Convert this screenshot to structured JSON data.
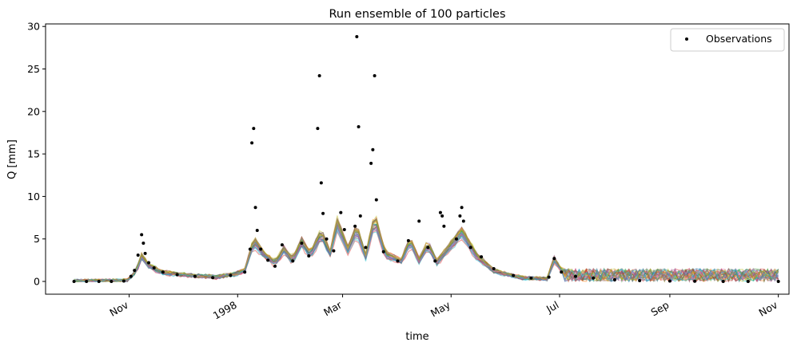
{
  "chart_data": {
    "type": "line",
    "title": "Run ensemble of 100 particles",
    "xlabel": "time",
    "ylabel": "Q [mm]",
    "x_axis_kind": "date",
    "xlim": [
      "1997-09-15",
      "1998-11-07"
    ],
    "ylim": [
      -1.5,
      30.3
    ],
    "yticks": [
      0,
      5,
      10,
      15,
      20,
      25,
      30
    ],
    "xticks": [
      {
        "date": "1997-11-01",
        "label": "Nov"
      },
      {
        "date": "1998-01-01",
        "label": "1998"
      },
      {
        "date": "1998-03-01",
        "label": "Mar"
      },
      {
        "date": "1998-05-01",
        "label": "May"
      },
      {
        "date": "1998-07-01",
        "label": "Jul"
      },
      {
        "date": "1998-09-01",
        "label": "Sep"
      },
      {
        "date": "1998-11-01",
        "label": "Nov"
      }
    ],
    "legend": {
      "placement": "top-right",
      "entries": [
        {
          "label": "Observations",
          "marker": "dot",
          "color": "#000000"
        }
      ]
    },
    "ensemble": {
      "particles": 100,
      "palette": [
        "#1f77b4",
        "#ff7f0e",
        "#2ca02c",
        "#d62728",
        "#9467bd",
        "#8c564b",
        "#e377c2",
        "#7f7f7f",
        "#bcbd22",
        "#17becf"
      ],
      "opacity": 0.45,
      "mean_curve": [
        {
          "x": "1997-10-01",
          "y": 0.05
        },
        {
          "x": "1997-10-31",
          "y": 0.1
        },
        {
          "x": "1997-11-05",
          "y": 1.2
        },
        {
          "x": "1997-11-08",
          "y": 2.8
        },
        {
          "x": "1997-11-12",
          "y": 1.8
        },
        {
          "x": "1997-11-20",
          "y": 1.0
        },
        {
          "x": "1997-12-05",
          "y": 0.7
        },
        {
          "x": "1997-12-20",
          "y": 0.5
        },
        {
          "x": "1997-12-30",
          "y": 0.8
        },
        {
          "x": "1998-01-05",
          "y": 1.2
        },
        {
          "x": "1998-01-10",
          "y": 4.6
        },
        {
          "x": "1998-01-15",
          "y": 3.3
        },
        {
          "x": "1998-01-22",
          "y": 2.0
        },
        {
          "x": "1998-01-27",
          "y": 3.6
        },
        {
          "x": "1998-02-01",
          "y": 2.4
        },
        {
          "x": "1998-02-06",
          "y": 4.5
        },
        {
          "x": "1998-02-11",
          "y": 3.0
        },
        {
          "x": "1998-02-17",
          "y": 5.5
        },
        {
          "x": "1998-02-22",
          "y": 3.2
        },
        {
          "x": "1998-02-26",
          "y": 6.6
        },
        {
          "x": "1998-03-04",
          "y": 3.6
        },
        {
          "x": "1998-03-09",
          "y": 6.0
        },
        {
          "x": "1998-03-14",
          "y": 2.8
        },
        {
          "x": "1998-03-19",
          "y": 7.2
        },
        {
          "x": "1998-03-25",
          "y": 3.1
        },
        {
          "x": "1998-04-03",
          "y": 2.3
        },
        {
          "x": "1998-04-08",
          "y": 4.6
        },
        {
          "x": "1998-04-13",
          "y": 2.4
        },
        {
          "x": "1998-04-18",
          "y": 4.2
        },
        {
          "x": "1998-04-23",
          "y": 2.2
        },
        {
          "x": "1998-04-29",
          "y": 3.6
        },
        {
          "x": "1998-05-07",
          "y": 5.6
        },
        {
          "x": "1998-05-15",
          "y": 3.0
        },
        {
          "x": "1998-05-25",
          "y": 1.2
        },
        {
          "x": "1998-06-10",
          "y": 0.4
        },
        {
          "x": "1998-06-24",
          "y": 0.3
        },
        {
          "x": "1998-06-28",
          "y": 2.5
        },
        {
          "x": "1998-07-03",
          "y": 1.0
        },
        {
          "x": "1998-07-31",
          "y": 0.6
        },
        {
          "x": "1998-11-01",
          "y": 0.6
        }
      ]
    },
    "observations": [
      {
        "x": "1997-10-01",
        "y": 0.0
      },
      {
        "x": "1997-10-08",
        "y": 0.0
      },
      {
        "x": "1997-10-15",
        "y": 0.0
      },
      {
        "x": "1997-10-22",
        "y": 0.0
      },
      {
        "x": "1997-10-29",
        "y": 0.05
      },
      {
        "x": "1997-11-02",
        "y": 0.6
      },
      {
        "x": "1997-11-04",
        "y": 1.3
      },
      {
        "x": "1997-11-06",
        "y": 3.1
      },
      {
        "x": "1997-11-08",
        "y": 5.5
      },
      {
        "x": "1997-11-09",
        "y": 4.5
      },
      {
        "x": "1997-11-10",
        "y": 3.3
      },
      {
        "x": "1997-11-12",
        "y": 2.2
      },
      {
        "x": "1997-11-15",
        "y": 1.6
      },
      {
        "x": "1997-11-20",
        "y": 1.1
      },
      {
        "x": "1997-11-28",
        "y": 0.8
      },
      {
        "x": "1997-12-08",
        "y": 0.6
      },
      {
        "x": "1997-12-18",
        "y": 0.45
      },
      {
        "x": "1997-12-28",
        "y": 0.7
      },
      {
        "x": "1998-01-05",
        "y": 1.1
      },
      {
        "x": "1998-01-08",
        "y": 3.8
      },
      {
        "x": "1998-01-09",
        "y": 16.3
      },
      {
        "x": "1998-01-10",
        "y": 18.0
      },
      {
        "x": "1998-01-11",
        "y": 8.7
      },
      {
        "x": "1998-01-12",
        "y": 6.0
      },
      {
        "x": "1998-01-14",
        "y": 3.8
      },
      {
        "x": "1998-01-18",
        "y": 2.5
      },
      {
        "x": "1998-01-22",
        "y": 1.8
      },
      {
        "x": "1998-01-26",
        "y": 4.3
      },
      {
        "x": "1998-02-01",
        "y": 2.4
      },
      {
        "x": "1998-02-06",
        "y": 4.5
      },
      {
        "x": "1998-02-10",
        "y": 3.0
      },
      {
        "x": "1998-02-15",
        "y": 18.0
      },
      {
        "x": "1998-02-16",
        "y": 24.2
      },
      {
        "x": "1998-02-17",
        "y": 11.6
      },
      {
        "x": "1998-02-18",
        "y": 8.0
      },
      {
        "x": "1998-02-20",
        "y": 5.0
      },
      {
        "x": "1998-02-24",
        "y": 3.6
      },
      {
        "x": "1998-02-28",
        "y": 8.1
      },
      {
        "x": "1998-03-02",
        "y": 6.1
      },
      {
        "x": "1998-03-08",
        "y": 6.5
      },
      {
        "x": "1998-03-09",
        "y": 28.8
      },
      {
        "x": "1998-03-10",
        "y": 18.2
      },
      {
        "x": "1998-03-11",
        "y": 7.7
      },
      {
        "x": "1998-03-14",
        "y": 4.0
      },
      {
        "x": "1998-03-17",
        "y": 13.9
      },
      {
        "x": "1998-03-18",
        "y": 15.5
      },
      {
        "x": "1998-03-19",
        "y": 24.2
      },
      {
        "x": "1998-03-20",
        "y": 9.6
      },
      {
        "x": "1998-03-24",
        "y": 3.5
      },
      {
        "x": "1998-04-01",
        "y": 2.4
      },
      {
        "x": "1998-04-07",
        "y": 4.8
      },
      {
        "x": "1998-04-13",
        "y": 7.1
      },
      {
        "x": "1998-04-18",
        "y": 4.0
      },
      {
        "x": "1998-04-22",
        "y": 2.4
      },
      {
        "x": "1998-04-25",
        "y": 8.1
      },
      {
        "x": "1998-04-26",
        "y": 7.7
      },
      {
        "x": "1998-04-27",
        "y": 6.5
      },
      {
        "x": "1998-05-04",
        "y": 5.0
      },
      {
        "x": "1998-05-06",
        "y": 7.7
      },
      {
        "x": "1998-05-07",
        "y": 8.7
      },
      {
        "x": "1998-05-08",
        "y": 7.1
      },
      {
        "x": "1998-05-12",
        "y": 4.0
      },
      {
        "x": "1998-05-18",
        "y": 2.9
      },
      {
        "x": "1998-05-25",
        "y": 1.5
      },
      {
        "x": "1998-06-05",
        "y": 0.7
      },
      {
        "x": "1998-06-15",
        "y": 0.4
      },
      {
        "x": "1998-06-25",
        "y": 0.5
      },
      {
        "x": "1998-06-28",
        "y": 2.7
      },
      {
        "x": "1998-07-02",
        "y": 1.1
      },
      {
        "x": "1998-07-10",
        "y": 0.6
      },
      {
        "x": "1998-07-20",
        "y": 0.4
      },
      {
        "x": "1998-08-01",
        "y": 0.2
      },
      {
        "x": "1998-08-15",
        "y": 0.1
      },
      {
        "x": "1998-09-01",
        "y": 0.05
      },
      {
        "x": "1998-09-15",
        "y": 0.02
      },
      {
        "x": "1998-10-01",
        "y": 0.0
      },
      {
        "x": "1998-10-15",
        "y": 0.0
      },
      {
        "x": "1998-11-01",
        "y": 0.0
      }
    ]
  }
}
